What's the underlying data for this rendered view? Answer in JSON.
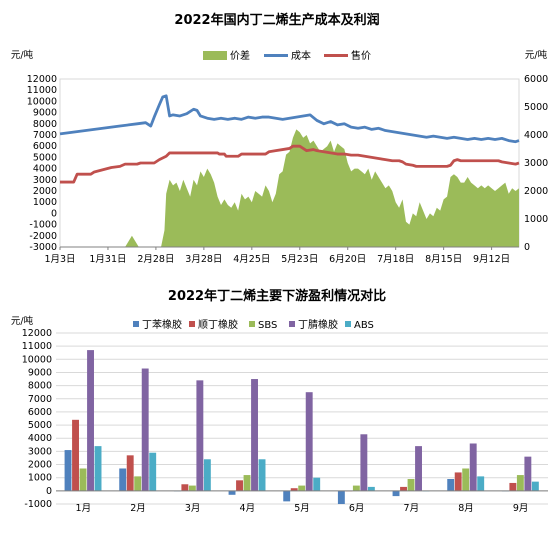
{
  "chart_data": [
    {
      "type": "area+line",
      "title": "2022年国内丁二烯生产成本及利润",
      "left_unit": "元/吨",
      "right_unit": "元/吨",
      "left_ylim": [
        -3000,
        12000
      ],
      "left_yticks": [
        -3000,
        -2000,
        -1000,
        0,
        1000,
        2000,
        3000,
        4000,
        5000,
        6000,
        7000,
        8000,
        9000,
        10000,
        11000,
        12000
      ],
      "right_ylim": [
        0,
        6000
      ],
      "right_yticks": [
        0,
        1000,
        2000,
        3000,
        4000,
        5000,
        6000
      ],
      "x_ticks": [
        "1月3日",
        "1月31日",
        "2月28日",
        "3月28日",
        "4月25日",
        "5月23日",
        "6月20日",
        "7月18日",
        "8月15日",
        "9月12日"
      ],
      "x_max": 268,
      "legend": [
        {
          "name": "价差",
          "color": "#9bbb59",
          "kind": "area",
          "axis": "right"
        },
        {
          "name": "成本",
          "color": "#4f81bd",
          "kind": "line",
          "axis": "left"
        },
        {
          "name": "售价",
          "color": "#c0504d",
          "kind": "line",
          "axis": "left"
        }
      ],
      "series": [
        {
          "name": "价差",
          "points": [
            [
              0,
              0
            ],
            [
              38,
              0
            ],
            [
              40,
              200
            ],
            [
              42,
              400
            ],
            [
              44,
              200
            ],
            [
              46,
              0
            ],
            [
              59,
              0
            ],
            [
              61,
              600
            ],
            [
              62,
              1900
            ],
            [
              64,
              2400
            ],
            [
              66,
              2200
            ],
            [
              68,
              2300
            ],
            [
              70,
              2000
            ],
            [
              72,
              2400
            ],
            [
              74,
              2100
            ],
            [
              76,
              1800
            ],
            [
              78,
              2400
            ],
            [
              80,
              2200
            ],
            [
              82,
              2700
            ],
            [
              84,
              2500
            ],
            [
              86,
              2800
            ],
            [
              88,
              2600
            ],
            [
              90,
              2300
            ],
            [
              92,
              1800
            ],
            [
              94,
              1500
            ],
            [
              96,
              1700
            ],
            [
              98,
              1500
            ],
            [
              100,
              1400
            ],
            [
              102,
              1600
            ],
            [
              104,
              1300
            ],
            [
              106,
              1900
            ],
            [
              108,
              1700
            ],
            [
              110,
              1800
            ],
            [
              112,
              1600
            ],
            [
              114,
              2000
            ],
            [
              116,
              1900
            ],
            [
              118,
              1800
            ],
            [
              120,
              2200
            ],
            [
              122,
              2000
            ],
            [
              124,
              1600
            ],
            [
              126,
              1900
            ],
            [
              128,
              2600
            ],
            [
              130,
              2700
            ],
            [
              132,
              3300
            ],
            [
              134,
              3400
            ],
            [
              136,
              3900
            ],
            [
              138,
              4200
            ],
            [
              140,
              4100
            ],
            [
              142,
              3900
            ],
            [
              144,
              4000
            ],
            [
              146,
              3700
            ],
            [
              148,
              3800
            ],
            [
              150,
              3600
            ],
            [
              152,
              3400
            ],
            [
              154,
              3500
            ],
            [
              156,
              3600
            ],
            [
              158,
              3800
            ],
            [
              160,
              3400
            ],
            [
              162,
              3700
            ],
            [
              164,
              3600
            ],
            [
              166,
              3500
            ],
            [
              168,
              3000
            ],
            [
              170,
              2700
            ],
            [
              172,
              2800
            ],
            [
              174,
              2800
            ],
            [
              176,
              2700
            ],
            [
              178,
              2600
            ],
            [
              180,
              2800
            ],
            [
              182,
              2400
            ],
            [
              184,
              2700
            ],
            [
              186,
              2500
            ],
            [
              188,
              2300
            ],
            [
              190,
              2100
            ],
            [
              192,
              2200
            ],
            [
              194,
              2000
            ],
            [
              196,
              1600
            ],
            [
              198,
              1400
            ],
            [
              200,
              1700
            ],
            [
              202,
              900
            ],
            [
              204,
              800
            ],
            [
              206,
              1200
            ],
            [
              208,
              1100
            ],
            [
              210,
              1600
            ],
            [
              212,
              1300
            ],
            [
              214,
              1000
            ],
            [
              216,
              1200
            ],
            [
              218,
              1100
            ],
            [
              220,
              1400
            ],
            [
              222,
              1300
            ],
            [
              224,
              1700
            ],
            [
              226,
              1800
            ],
            [
              228,
              2500
            ],
            [
              230,
              2600
            ],
            [
              232,
              2500
            ],
            [
              234,
              2300
            ],
            [
              236,
              2300
            ],
            [
              238,
              2500
            ],
            [
              240,
              2300
            ],
            [
              242,
              2200
            ],
            [
              244,
              2100
            ],
            [
              246,
              2200
            ],
            [
              248,
              2100
            ],
            [
              250,
              2200
            ],
            [
              252,
              2100
            ],
            [
              254,
              2000
            ],
            [
              256,
              2100
            ],
            [
              258,
              2200
            ],
            [
              260,
              2300
            ],
            [
              262,
              1900
            ],
            [
              264,
              2100
            ],
            [
              266,
              2000
            ],
            [
              268,
              2100
            ],
            [
              268,
              0
            ]
          ]
        },
        {
          "name": "成本",
          "points": [
            [
              0,
              7100
            ],
            [
              5,
              7200
            ],
            [
              10,
              7300
            ],
            [
              15,
              7400
            ],
            [
              20,
              7500
            ],
            [
              25,
              7600
            ],
            [
              30,
              7700
            ],
            [
              35,
              7800
            ],
            [
              40,
              7900
            ],
            [
              45,
              8000
            ],
            [
              50,
              8100
            ],
            [
              53,
              7800
            ],
            [
              55,
              8600
            ],
            [
              58,
              9700
            ],
            [
              60,
              10400
            ],
            [
              62,
              10500
            ],
            [
              64,
              8700
            ],
            [
              66,
              8800
            ],
            [
              70,
              8700
            ],
            [
              74,
              8900
            ],
            [
              78,
              9300
            ],
            [
              80,
              9200
            ],
            [
              82,
              8700
            ],
            [
              86,
              8500
            ],
            [
              90,
              8400
            ],
            [
              94,
              8500
            ],
            [
              98,
              8400
            ],
            [
              102,
              8500
            ],
            [
              106,
              8400
            ],
            [
              110,
              8600
            ],
            [
              114,
              8500
            ],
            [
              118,
              8600
            ],
            [
              122,
              8600
            ],
            [
              126,
              8500
            ],
            [
              130,
              8400
            ],
            [
              134,
              8500
            ],
            [
              138,
              8600
            ],
            [
              142,
              8700
            ],
            [
              146,
              8800
            ],
            [
              150,
              8300
            ],
            [
              154,
              8000
            ],
            [
              158,
              8200
            ],
            [
              162,
              7900
            ],
            [
              166,
              8000
            ],
            [
              170,
              7700
            ],
            [
              174,
              7600
            ],
            [
              178,
              7700
            ],
            [
              182,
              7500
            ],
            [
              186,
              7600
            ],
            [
              190,
              7400
            ],
            [
              194,
              7300
            ],
            [
              198,
              7200
            ],
            [
              202,
              7100
            ],
            [
              206,
              7000
            ],
            [
              210,
              6900
            ],
            [
              214,
              6800
            ],
            [
              218,
              6900
            ],
            [
              222,
              6800
            ],
            [
              226,
              6700
            ],
            [
              230,
              6800
            ],
            [
              234,
              6700
            ],
            [
              238,
              6600
            ],
            [
              242,
              6700
            ],
            [
              246,
              6600
            ],
            [
              250,
              6700
            ],
            [
              254,
              6600
            ],
            [
              258,
              6700
            ],
            [
              262,
              6500
            ],
            [
              266,
              6400
            ],
            [
              268,
              6500
            ]
          ]
        },
        {
          "name": "售价",
          "points": [
            [
              0,
              2800
            ],
            [
              8,
              2800
            ],
            [
              10,
              3500
            ],
            [
              18,
              3500
            ],
            [
              20,
              3700
            ],
            [
              25,
              3900
            ],
            [
              30,
              4100
            ],
            [
              35,
              4200
            ],
            [
              38,
              4400
            ],
            [
              45,
              4400
            ],
            [
              47,
              4500
            ],
            [
              55,
              4500
            ],
            [
              58,
              4800
            ],
            [
              62,
              5100
            ],
            [
              64,
              5400
            ],
            [
              92,
              5400
            ],
            [
              93,
              5300
            ],
            [
              96,
              5300
            ],
            [
              97,
              5100
            ],
            [
              104,
              5100
            ],
            [
              106,
              5300
            ],
            [
              120,
              5300
            ],
            [
              122,
              5500
            ],
            [
              126,
              5600
            ],
            [
              130,
              5700
            ],
            [
              134,
              5800
            ],
            [
              136,
              6000
            ],
            [
              140,
              6000
            ],
            [
              142,
              5800
            ],
            [
              144,
              5600
            ],
            [
              148,
              5700
            ],
            [
              150,
              5600
            ],
            [
              154,
              5500
            ],
            [
              158,
              5400
            ],
            [
              162,
              5300
            ],
            [
              166,
              5300
            ],
            [
              170,
              5200
            ],
            [
              174,
              5200
            ],
            [
              178,
              5100
            ],
            [
              182,
              5000
            ],
            [
              186,
              4900
            ],
            [
              190,
              4800
            ],
            [
              194,
              4700
            ],
            [
              198,
              4700
            ],
            [
              200,
              4600
            ],
            [
              202,
              4400
            ],
            [
              206,
              4300
            ],
            [
              208,
              4200
            ],
            [
              226,
              4200
            ],
            [
              228,
              4300
            ],
            [
              230,
              4700
            ],
            [
              232,
              4800
            ],
            [
              234,
              4700
            ],
            [
              248,
              4700
            ],
            [
              252,
              4700
            ],
            [
              256,
              4700
            ],
            [
              258,
              4600
            ],
            [
              262,
              4500
            ],
            [
              266,
              4400
            ],
            [
              268,
              4500
            ]
          ]
        }
      ]
    },
    {
      "type": "bar",
      "title": "2022年丁二烯主要下游盈利情况对比",
      "unit": "元/吨",
      "ylim": [
        -1000,
        12000
      ],
      "yticks": [
        -1000,
        0,
        1000,
        2000,
        3000,
        4000,
        5000,
        6000,
        7000,
        8000,
        9000,
        10000,
        11000,
        12000
      ],
      "categories": [
        "1月",
        "2月",
        "3月",
        "4月",
        "5月",
        "6月",
        "7月",
        "8月",
        "9月"
      ],
      "series": [
        {
          "name": "丁苯橡胶",
          "color": "#4f81bd",
          "values": [
            3100,
            1700,
            0,
            -300,
            -800,
            -1000,
            -400,
            900,
            0
          ]
        },
        {
          "name": "顺丁橡胶",
          "color": "#c0504d",
          "values": [
            5400,
            2700,
            500,
            800,
            200,
            0,
            300,
            1400,
            600
          ]
        },
        {
          "name": "SBS",
          "color": "#9bbb59",
          "values": [
            1700,
            1100,
            400,
            1200,
            400,
            400,
            900,
            1700,
            1200
          ]
        },
        {
          "name": "丁腈橡胶",
          "color": "#8064a2",
          "values": [
            10700,
            9300,
            8400,
            8500,
            7500,
            4300,
            3400,
            3600,
            2600
          ]
        },
        {
          "name": "ABS",
          "color": "#4bacc6",
          "values": [
            3400,
            2900,
            2400,
            2400,
            1000,
            300,
            0,
            1100,
            700
          ]
        }
      ]
    }
  ]
}
